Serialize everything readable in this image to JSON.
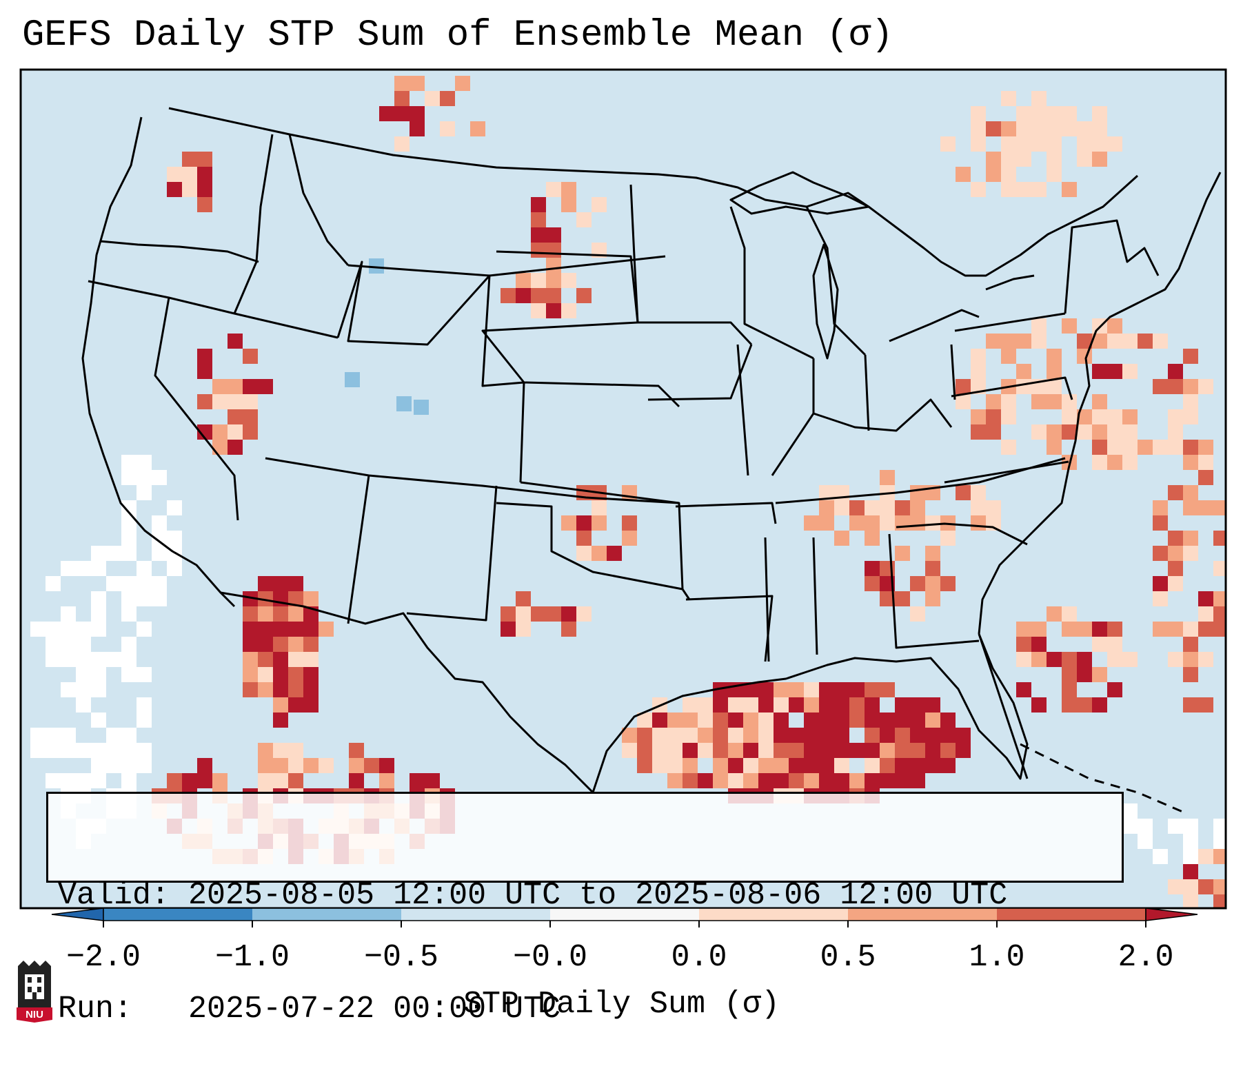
{
  "title": "GEFS Daily STP Sum of Ensemble Mean (σ)",
  "valid_label": "Valid:",
  "valid_value": "2025-08-05 12:00 UTC to 2025-08-06 12:00 UTC",
  "run_label": "Run:",
  "run_value": "2025-07-22 00:00 UTC",
  "colorbar": {
    "label": "STP Daily Sum (σ)",
    "ticks": [
      "−2.0",
      "−1.0",
      "−0.5",
      "−0.0",
      "0.0",
      "0.5",
      "1.0",
      "2.0"
    ],
    "colors": [
      "#3a86c2",
      "#8cc0df",
      "#d1e5f0",
      "#f7f7f7",
      "#fddbc7",
      "#f4a582",
      "#d6604d",
      "#b2182b"
    ],
    "extend_low": "#2166ac",
    "extend_high": "#b2182b"
  },
  "logo_text": "NIU",
  "map": {
    "background": "#d1e5f0",
    "region": "Contiguous United States",
    "variable": "STP Daily Sum (σ)",
    "hotspots": [
      {
        "name": "Gulf of Mexico",
        "level": "2.0"
      },
      {
        "name": "Gulf of California / Sonora",
        "level": "2.0"
      },
      {
        "name": "North Dakota",
        "level": "2.0"
      },
      {
        "name": "Nevada",
        "level": "2.0"
      },
      {
        "name": "Oklahoma / Kansas",
        "level": "1.0"
      },
      {
        "name": "Southeast US",
        "level": "1.0"
      },
      {
        "name": "Mid-Atlantic / Atlantic",
        "level": "0.5"
      }
    ]
  }
}
